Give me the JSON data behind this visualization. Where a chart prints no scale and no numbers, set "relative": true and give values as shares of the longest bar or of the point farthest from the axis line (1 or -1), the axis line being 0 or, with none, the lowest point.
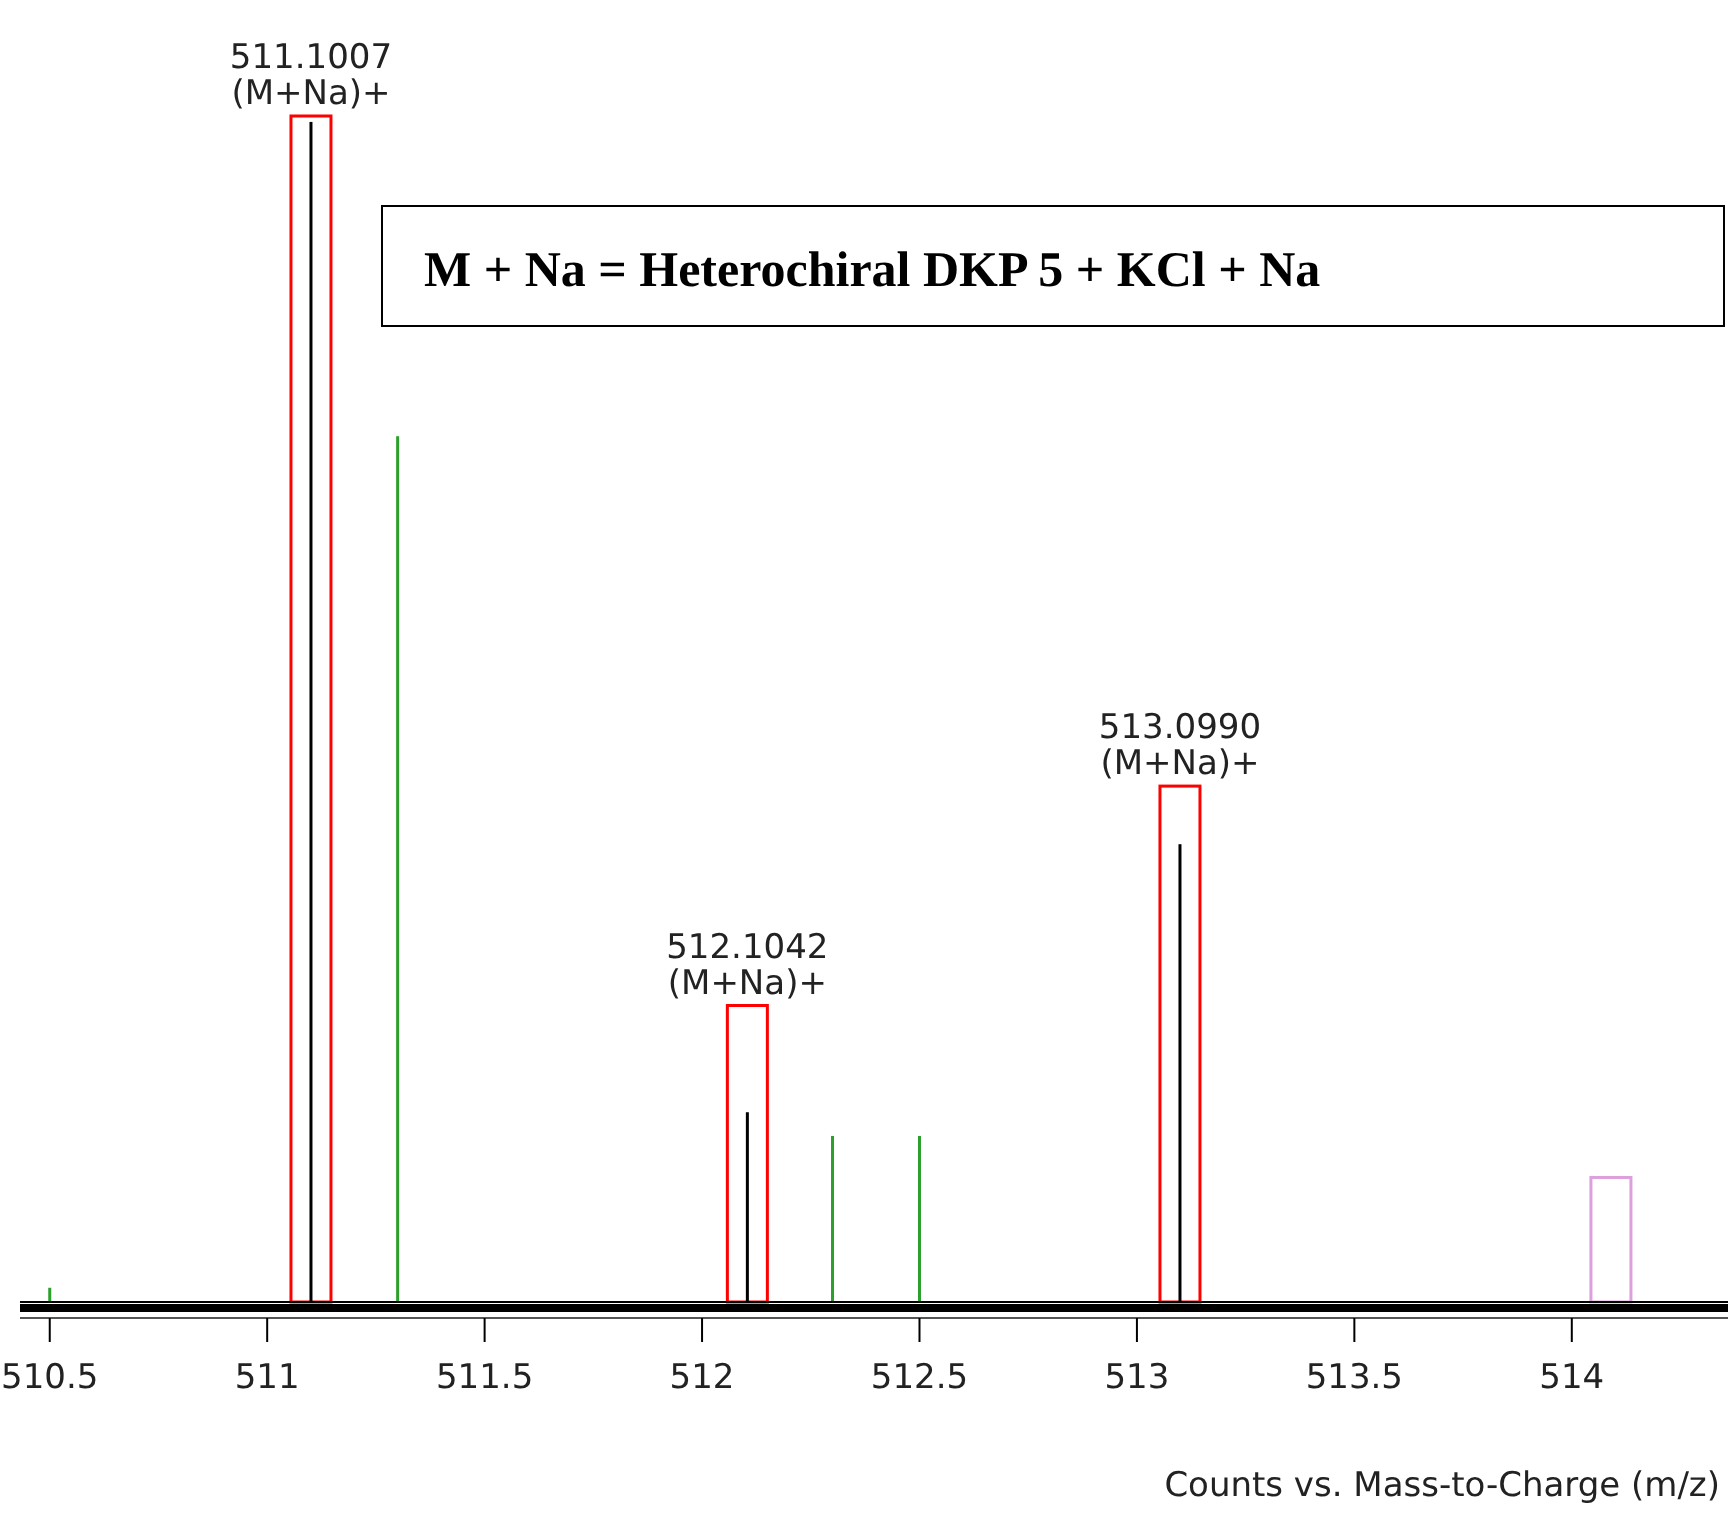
{
  "chart_data": {
    "type": "bar",
    "relative": true,
    "xlabel": "Counts vs. Mass-to-Charge (m/z)",
    "xlim": [
      510.45,
      514.35
    ],
    "xticks": [
      510.5,
      511,
      511.5,
      512,
      512.5,
      513,
      513.5,
      514
    ],
    "series": [
      {
        "color": "#ff0000",
        "line_style": "solid",
        "x": [
          511.1007,
          512.1042,
          513.099
        ],
        "values": [
          1,
          0.25,
          0.435
        ]
      },
      {
        "color": "#dda0dd",
        "line_style": "solid",
        "x": [
          514.09
        ],
        "values": [
          0.105
        ]
      },
      {
        "color": "#000000",
        "x": [
          511.1007,
          512.1042,
          513.099
        ],
        "values": [
          0.995,
          0.16,
          0.386
        ]
      },
      {
        "color": "#2ca02c",
        "x": [
          510.5,
          511.3,
          512.3,
          512.5
        ],
        "values": [
          0.012,
          0.73,
          0.14,
          0.14
        ]
      }
    ],
    "annotations": [
      "M + Na = Heterochiral DKP 5 + KCl + Na",
      {
        "text": "511.1007\n(M+Na)+",
        "x": 511.1007,
        "y": 1
      },
      {
        "text": "512.1042\n(M+Na)+",
        "x": 512.1042,
        "y": 0.25
      },
      {
        "text": "513.0990\n(M+Na)+",
        "x": 513.099,
        "y": 0.435
      }
    ]
  }
}
